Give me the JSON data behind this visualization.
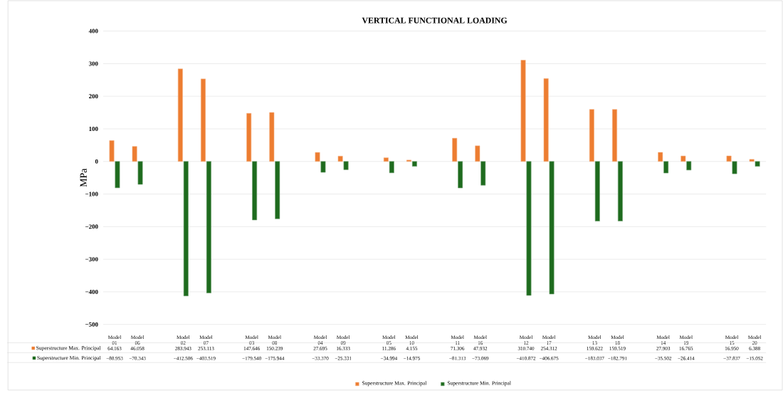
{
  "chart_data": {
    "type": "bar",
    "title": "VERTICAL FUNCTIONAL LOADING",
    "ylabel": "MPa",
    "categories": [
      "Model 01",
      "Model 06",
      null,
      "Model 02",
      "Model 07",
      null,
      "Model 03",
      "Model 08",
      null,
      "Model 04",
      "Model 09",
      null,
      "Model 05",
      "Model 10",
      null,
      "Model 11",
      "Model 16",
      null,
      "Model 12",
      "Model 17",
      null,
      "Model 13",
      "Model 18",
      null,
      "Model 14",
      "Model 19",
      null,
      "Model 15",
      "Model 20"
    ],
    "series": [
      {
        "name": "Superstructure Max. Principal",
        "color": "#ed7d31",
        "values": [
          64.163,
          46.058,
          null,
          283.943,
          253.113,
          null,
          147.646,
          150.239,
          null,
          27.695,
          16.333,
          null,
          11.286,
          4.155,
          null,
          71.306,
          47.932,
          null,
          310.74,
          254.312,
          null,
          159.622,
          159.519,
          null,
          27.903,
          16.765,
          null,
          16.95,
          6.388
        ],
        "value_labels": [
          "64.163",
          "46.058",
          null,
          "283.943",
          "253.113",
          null,
          "147.646",
          "150.239",
          null,
          "27.695",
          "16.333",
          null,
          "11.286",
          "4.155",
          null,
          "71.306",
          "47.932",
          null,
          "310.740",
          "254.312",
          null,
          "159.622",
          "159.519",
          null,
          "27.903",
          "16.765",
          null,
          "16.950",
          "6.388"
        ]
      },
      {
        "name": "Superstructure Min. Principal",
        "color": "#1e6b1e",
        "values": [
          -80.953,
          -70.343,
          null,
          -412.506,
          -403.519,
          null,
          -179.54,
          -175.944,
          null,
          -33.37,
          -25.331,
          null,
          -34.994,
          -14.975,
          null,
          -81.313,
          -73.069,
          null,
          -410.872,
          -406.675,
          null,
          -183.037,
          -182.791,
          null,
          -35.502,
          -26.414,
          null,
          -37.837,
          -15.052
        ],
        "value_labels": [
          "−80.953",
          "−70.343",
          null,
          "−412.506",
          "−403.519",
          null,
          "−179.540",
          "−175.944",
          null,
          "−33.370",
          "−25.331",
          null,
          "−34.994",
          "−14.975",
          null,
          "−81.313",
          "−73.069",
          null,
          "−410.872",
          "−406.675",
          null,
          "−183.037",
          "−182.791",
          null,
          "−35.502",
          "−26.414",
          null,
          "−37.837",
          "−15.052"
        ]
      }
    ],
    "ylim": [
      -500,
      400
    ],
    "yticks": [
      {
        "value": -500,
        "label": "−500"
      },
      {
        "value": -400,
        "label": "−400"
      },
      {
        "value": -300,
        "label": "−300"
      },
      {
        "value": -200,
        "label": "−200"
      },
      {
        "value": -100,
        "label": "−100"
      },
      0,
      100,
      200,
      300,
      400
    ],
    "grid": "y",
    "legend": "bottom"
  }
}
